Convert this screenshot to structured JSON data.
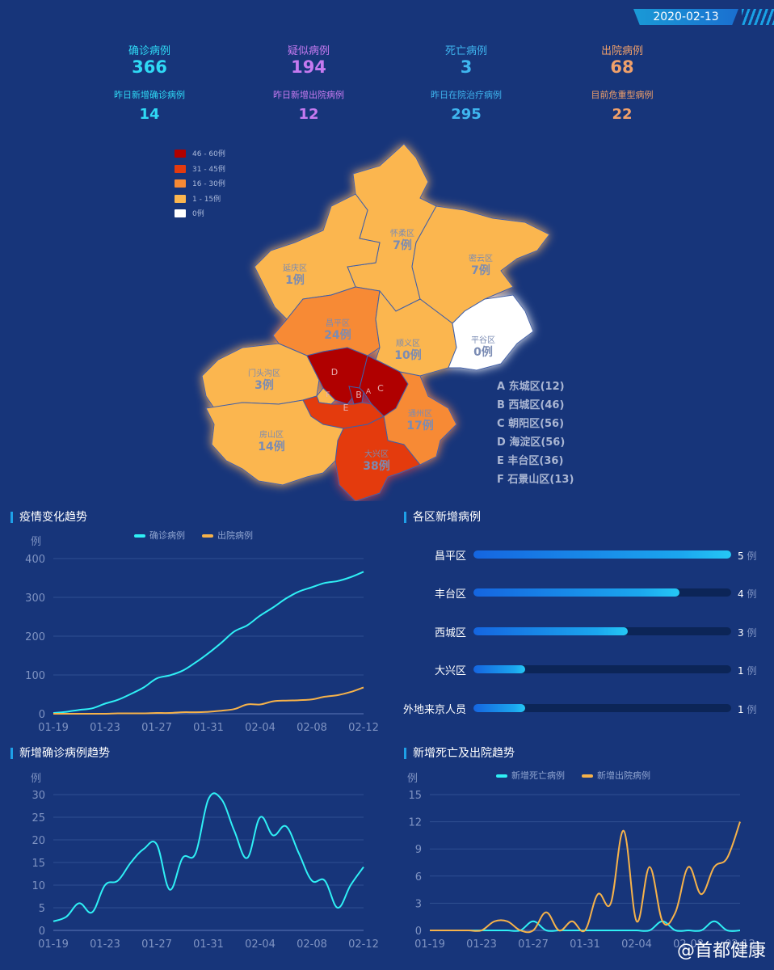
{
  "date": "2020-02-13",
  "stats_top": [
    {
      "label": "确诊病例",
      "value": "366",
      "color": "#2fd9f5"
    },
    {
      "label": "疑似病例",
      "value": "194",
      "color": "#c57af0"
    },
    {
      "label": "死亡病例",
      "value": "3",
      "color": "#3fb6f0"
    },
    {
      "label": "出院病例",
      "value": "68",
      "color": "#f0a06a"
    }
  ],
  "stats_bottom": [
    {
      "label": "昨日新增确诊病例",
      "value": "14",
      "color": "#2fd9f5"
    },
    {
      "label": "昨日新增出院病例",
      "value": "12",
      "color": "#c57af0"
    },
    {
      "label": "昨日在院治疗病例",
      "value": "295",
      "color": "#3fb6f0"
    },
    {
      "label": "目前危重型病例",
      "value": "22",
      "color": "#f0a06a"
    }
  ],
  "map": {
    "legend": [
      {
        "label": "46 - 60例",
        "color": "#b00000"
      },
      {
        "label": "31 - 45例",
        "color": "#e43a0e"
      },
      {
        "label": "16 - 30例",
        "color": "#f78a35"
      },
      {
        "label": "1 - 15例",
        "color": "#fbb64f"
      },
      {
        "label": "0例",
        "color": "#ffffff"
      }
    ],
    "districts": [
      {
        "name": "怀柔区",
        "count": "7例"
      },
      {
        "name": "密云区",
        "count": "7例"
      },
      {
        "name": "延庆区",
        "count": "1例"
      },
      {
        "name": "昌平区",
        "count": "24例"
      },
      {
        "name": "顺义区",
        "count": "10例"
      },
      {
        "name": "平谷区",
        "count": "0例"
      },
      {
        "name": "门头沟区",
        "count": "3例"
      },
      {
        "name": "通州区",
        "count": "17例"
      },
      {
        "name": "房山区",
        "count": "14例"
      },
      {
        "name": "大兴区",
        "count": "38例"
      }
    ],
    "letters": [
      "D",
      "B",
      "C",
      "F",
      "E",
      "A"
    ],
    "list": [
      "A 东城区(12)",
      "B 西城区(46)",
      "C 朝阳区(56)",
      "D 海淀区(56)",
      "E 丰台区(36)",
      "F 石景山区(13)"
    ]
  },
  "sections": {
    "trend": "疫情变化趋势",
    "district_new": "各区新增病例",
    "new_confirmed": "新增确诊病例趋势",
    "new_death_discharge": "新增死亡及出院趋势"
  },
  "watermark": "@首都健康",
  "chart_data": [
    {
      "type": "line",
      "title": "疫情变化趋势",
      "ylabel": "例",
      "ylim": [
        0,
        400
      ],
      "yticks": [
        0,
        100,
        200,
        300,
        400
      ],
      "xticks": [
        "01-19",
        "01-23",
        "01-27",
        "01-31",
        "02-04",
        "02-08",
        "02-12"
      ],
      "x": [
        "01-19",
        "01-20",
        "01-21",
        "01-22",
        "01-23",
        "01-24",
        "01-25",
        "01-26",
        "01-27",
        "01-28",
        "01-29",
        "01-30",
        "01-31",
        "02-01",
        "02-02",
        "02-03",
        "02-04",
        "02-05",
        "02-06",
        "02-07",
        "02-08",
        "02-09",
        "02-10",
        "02-11",
        "02-12"
      ],
      "series": [
        {
          "name": "确诊病例",
          "color": "#2ff0f5",
          "values": [
            2,
            5,
            10,
            14,
            26,
            36,
            51,
            68,
            91,
            99,
            111,
            132,
            156,
            183,
            212,
            228,
            253,
            274,
            297,
            315,
            326,
            337,
            342,
            352,
            366
          ]
        },
        {
          "name": "出院病例",
          "color": "#f6b24a",
          "values": [
            0,
            0,
            0,
            0,
            0,
            1,
            1,
            1,
            2,
            2,
            4,
            4,
            5,
            8,
            12,
            24,
            24,
            32,
            34,
            35,
            37,
            44,
            48,
            56,
            68
          ]
        }
      ]
    },
    {
      "type": "bar",
      "title": "各区新增病例",
      "unit": "例",
      "max": 5,
      "categories": [
        "昌平区",
        "丰台区",
        "西城区",
        "大兴区",
        "外地来京人员"
      ],
      "values": [
        5,
        4,
        3,
        1,
        1
      ]
    },
    {
      "type": "line",
      "title": "新增确诊病例趋势",
      "ylabel": "例",
      "ylim": [
        0,
        30
      ],
      "yticks": [
        0,
        5,
        10,
        15,
        20,
        25,
        30
      ],
      "xticks": [
        "01-19",
        "01-23",
        "01-27",
        "01-31",
        "02-04",
        "02-08",
        "02-12"
      ],
      "x": [
        "01-19",
        "01-20",
        "01-21",
        "01-22",
        "01-23",
        "01-24",
        "01-25",
        "01-26",
        "01-27",
        "01-28",
        "01-29",
        "01-30",
        "01-31",
        "02-01",
        "02-02",
        "02-03",
        "02-04",
        "02-05",
        "02-06",
        "02-07",
        "02-08",
        "02-09",
        "02-10",
        "02-11",
        "02-12"
      ],
      "series": [
        {
          "name": "确诊病例",
          "color": "#2ff0f5",
          "values": [
            2,
            3,
            6,
            4,
            10,
            11,
            15,
            18,
            19,
            9,
            16,
            17,
            29,
            29,
            22,
            16,
            25,
            21,
            23,
            17,
            11,
            11,
            5,
            10,
            14
          ]
        }
      ]
    },
    {
      "type": "line",
      "title": "新增死亡及出院趋势",
      "ylabel": "例",
      "ylim": [
        0,
        15
      ],
      "yticks": [
        0,
        3,
        6,
        9,
        12,
        15
      ],
      "xticks": [
        "01-19",
        "01-23",
        "01-27",
        "01-31",
        "02-04",
        "02-08",
        "02-12"
      ],
      "x": [
        "01-19",
        "01-20",
        "01-21",
        "01-22",
        "01-23",
        "01-24",
        "01-25",
        "01-26",
        "01-27",
        "01-28",
        "01-29",
        "01-30",
        "01-31",
        "02-01",
        "02-02",
        "02-03",
        "02-04",
        "02-05",
        "02-06",
        "02-07",
        "02-08",
        "02-09",
        "02-10",
        "02-11",
        "02-12"
      ],
      "series": [
        {
          "name": "新增死亡病例",
          "color": "#2ff0f5",
          "values": [
            0,
            0,
            0,
            0,
            0,
            0,
            0,
            0,
            1,
            0,
            0,
            0,
            0,
            0,
            0,
            0,
            0,
            0,
            1,
            0,
            0,
            0,
            1,
            0,
            0
          ]
        },
        {
          "name": "新增出院病例",
          "color": "#f6b24a",
          "values": [
            0,
            0,
            0,
            0,
            0,
            1,
            1,
            0,
            0,
            2,
            0,
            1,
            0,
            4,
            3,
            11,
            1,
            7,
            1,
            2,
            7,
            4,
            7,
            8,
            12
          ]
        }
      ]
    }
  ]
}
